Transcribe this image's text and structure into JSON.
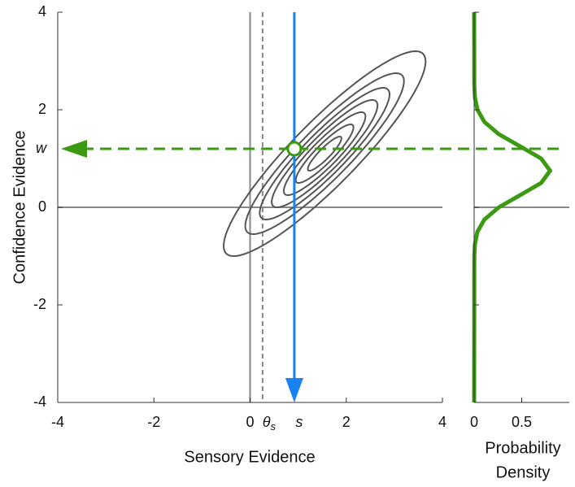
{
  "chart_data": [
    {
      "type": "contour",
      "xlabel": "Sensory Evidence",
      "ylabel": "Confidence Evidence",
      "xlim": [
        -4,
        4
      ],
      "ylim": [
        -4,
        4
      ],
      "xticks": [
        -4,
        -2,
        0,
        2,
        4
      ],
      "yticks": [
        -4,
        -2,
        0,
        2,
        4
      ],
      "distribution": {
        "mean": [
          1.55,
          1.1
        ],
        "sd": [
          1,
          1
        ],
        "rho": 0.9,
        "levels": [
          0.35,
          0.6,
          0.85,
          1.1,
          1.35,
          1.65,
          2.1
        ],
        "color": "#555555"
      },
      "reference_lines": {
        "x": 0,
        "y": 0,
        "color": "#888888"
      },
      "criterion": {
        "value": 0.26,
        "label": "θ",
        "subscript": "s",
        "color": "#888888"
      },
      "sample": {
        "x": 0.92,
        "label": "s",
        "color": "#1a82f0"
      },
      "readout": {
        "y": 1.2,
        "label": "w",
        "color": "#3c9a12"
      }
    },
    {
      "type": "line",
      "xlabel": [
        "Probability",
        "Density"
      ],
      "xlim": [
        0,
        1
      ],
      "ylim": [
        -4,
        4
      ],
      "xticks": [
        0,
        0.5
      ],
      "yticks": [
        -4,
        -2,
        0,
        2,
        4
      ],
      "y": [
        -4,
        -1,
        -0.75,
        -0.5,
        -0.25,
        0,
        0.25,
        0.5,
        0.75,
        1,
        1.25,
        1.5,
        1.75,
        2,
        2.25,
        2.5,
        4
      ],
      "values": [
        0,
        0.0017,
        0.0089,
        0.035,
        0.108,
        0.259,
        0.484,
        0.704,
        0.798,
        0.704,
        0.484,
        0.259,
        0.108,
        0.035,
        0.0089,
        0.0017,
        0
      ],
      "color": "#3c9a12"
    }
  ]
}
